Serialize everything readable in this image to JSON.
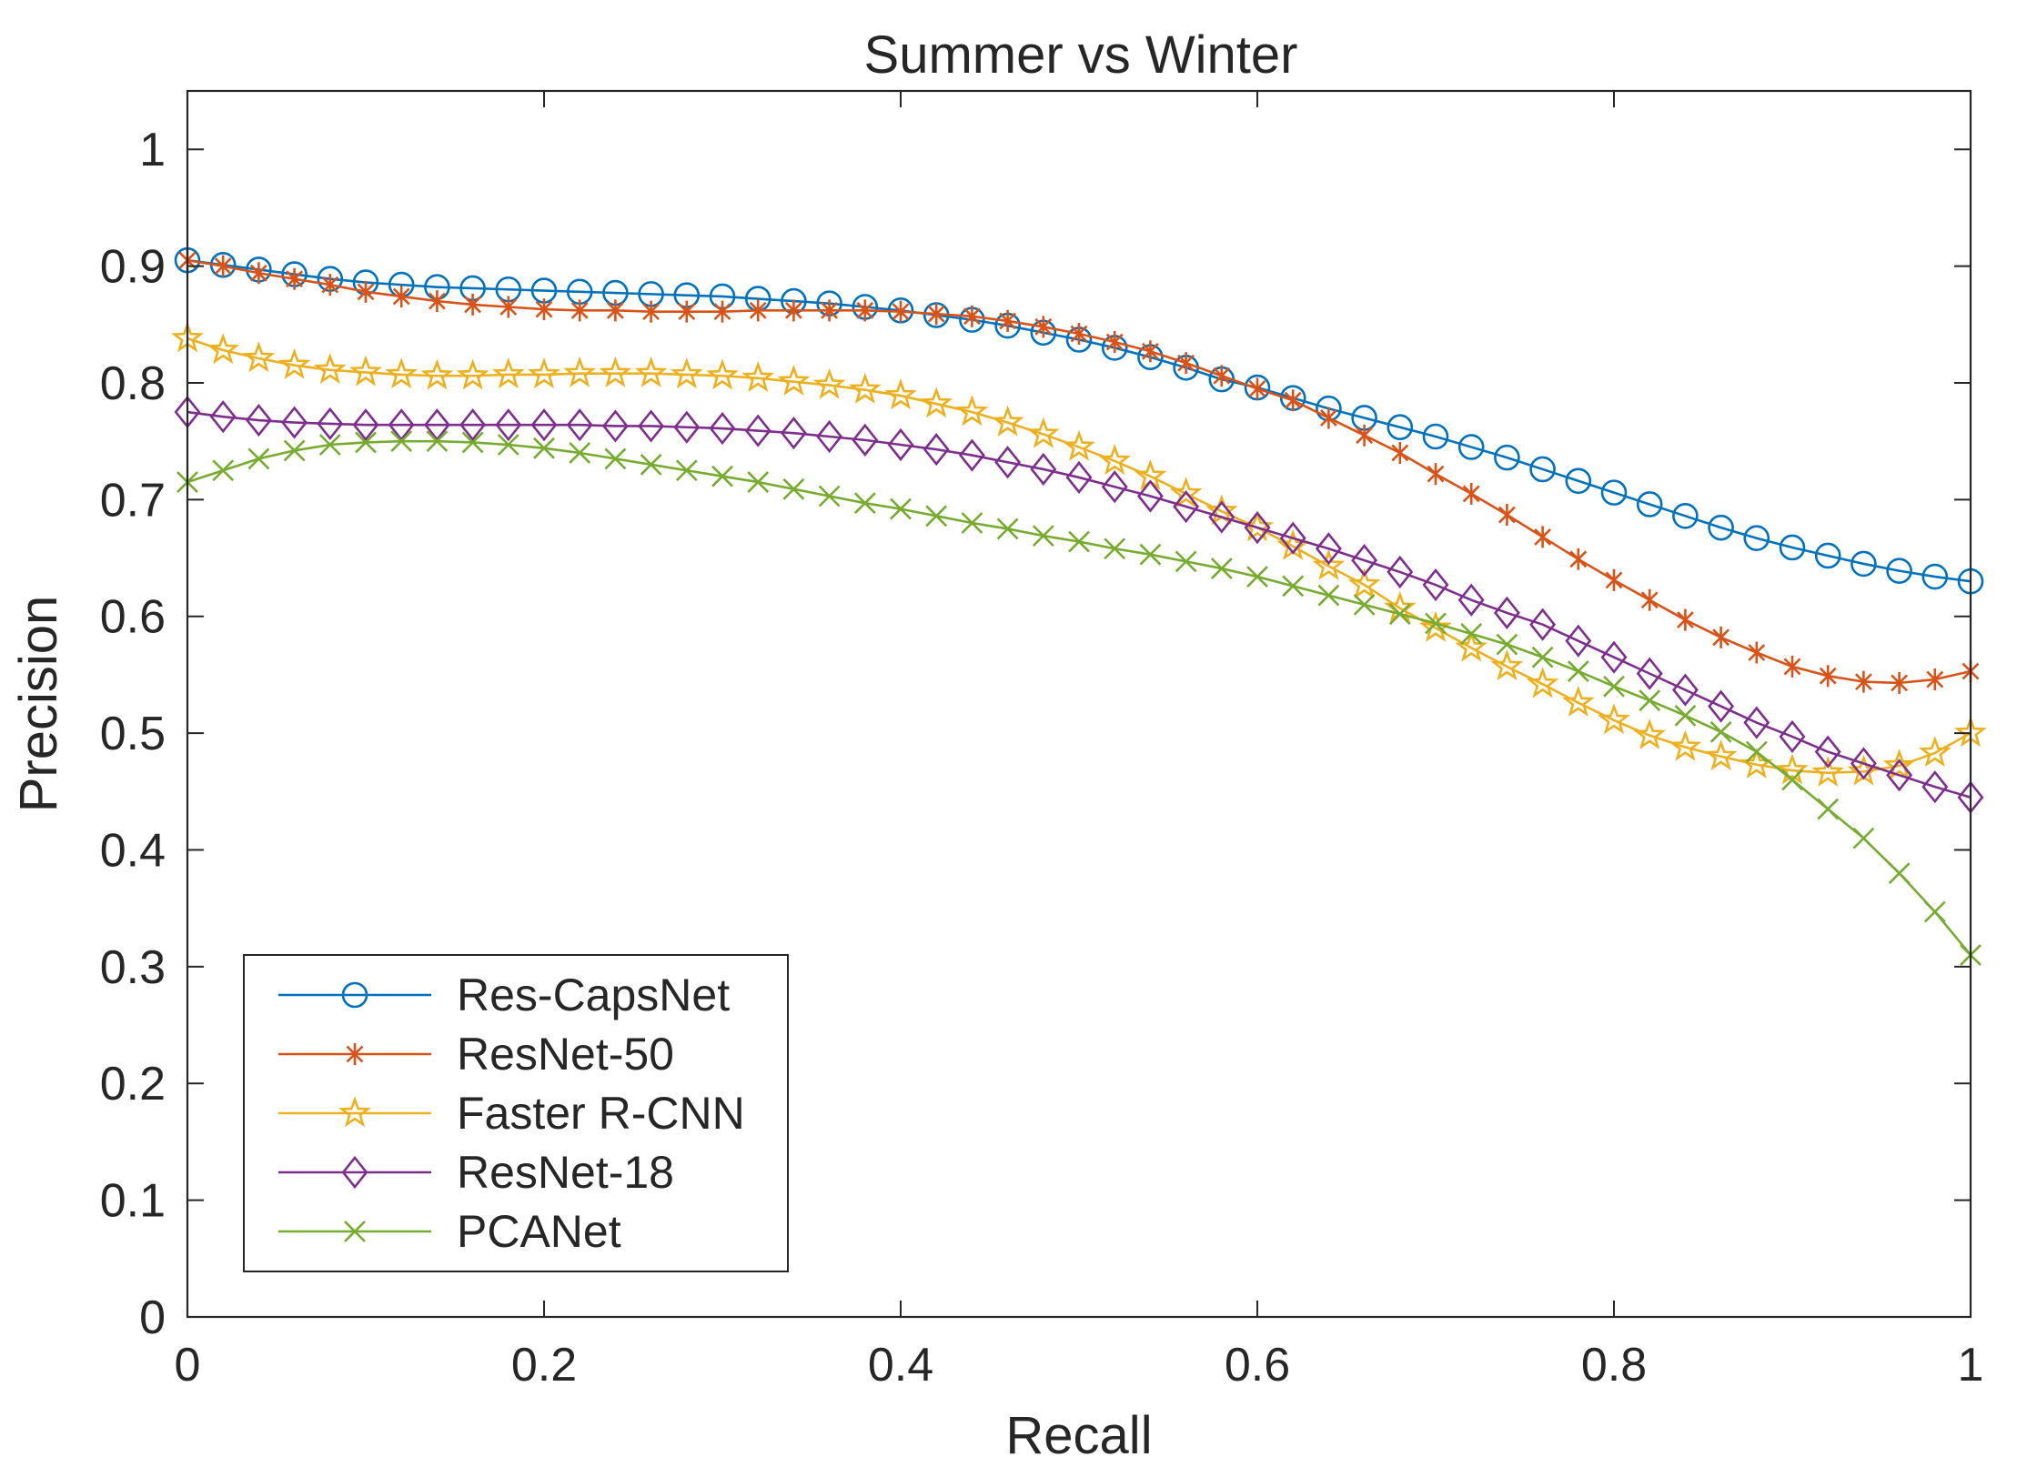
{
  "chart_data": {
    "type": "line",
    "title": "Summer vs Winter",
    "xlabel": "Recall",
    "ylabel": "Precision",
    "xlim": [
      0,
      1
    ],
    "ylim": [
      0,
      1.05
    ],
    "xticks": [
      0,
      0.2,
      0.4,
      0.6,
      0.8,
      1
    ],
    "xtick_labels": [
      "0",
      "0.2",
      "0.4",
      "0.6",
      "0.8",
      "1"
    ],
    "yticks": [
      0,
      0.1,
      0.2,
      0.3,
      0.4,
      0.5,
      0.6,
      0.7,
      0.8,
      0.9,
      1
    ],
    "ytick_labels": [
      "0",
      "0.1",
      "0.2",
      "0.3",
      "0.4",
      "0.5",
      "0.6",
      "0.7",
      "0.8",
      "0.9",
      "1"
    ],
    "grid": false,
    "box": true,
    "legend_position": "bottom-left",
    "x": [
      0,
      0.02,
      0.04,
      0.06,
      0.08,
      0.1,
      0.12,
      0.14,
      0.16,
      0.18,
      0.2,
      0.22,
      0.24,
      0.26,
      0.28,
      0.3,
      0.32,
      0.34,
      0.36,
      0.38,
      0.4,
      0.42,
      0.44,
      0.46,
      0.48,
      0.5,
      0.52,
      0.54,
      0.56,
      0.58,
      0.6,
      0.62,
      0.64,
      0.66,
      0.68,
      0.7,
      0.72,
      0.74,
      0.76,
      0.78,
      0.8,
      0.82,
      0.84,
      0.86,
      0.88,
      0.9,
      0.92,
      0.94,
      0.96,
      0.98,
      1
    ],
    "series": [
      {
        "name": "Res-CapsNet",
        "color": "#0072BD",
        "marker": "circle",
        "values": [
          0.905,
          0.901,
          0.897,
          0.893,
          0.889,
          0.886,
          0.884,
          0.882,
          0.881,
          0.88,
          0.879,
          0.878,
          0.877,
          0.876,
          0.875,
          0.874,
          0.872,
          0.87,
          0.868,
          0.865,
          0.862,
          0.858,
          0.854,
          0.849,
          0.843,
          0.837,
          0.83,
          0.822,
          0.813,
          0.803,
          0.796,
          0.787,
          0.778,
          0.77,
          0.762,
          0.754,
          0.745,
          0.736,
          0.726,
          0.716,
          0.706,
          0.696,
          0.686,
          0.676,
          0.667,
          0.659,
          0.652,
          0.645,
          0.639,
          0.634,
          0.63
        ]
      },
      {
        "name": "ResNet-50",
        "color": "#D95319",
        "marker": "asterisk",
        "values": [
          0.905,
          0.9,
          0.894,
          0.889,
          0.884,
          0.878,
          0.874,
          0.87,
          0.867,
          0.865,
          0.863,
          0.862,
          0.862,
          0.861,
          0.861,
          0.861,
          0.862,
          0.862,
          0.862,
          0.862,
          0.861,
          0.859,
          0.857,
          0.853,
          0.848,
          0.842,
          0.835,
          0.827,
          0.817,
          0.806,
          0.795,
          0.785,
          0.77,
          0.755,
          0.74,
          0.722,
          0.705,
          0.687,
          0.668,
          0.649,
          0.631,
          0.614,
          0.597,
          0.582,
          0.569,
          0.557,
          0.549,
          0.544,
          0.543,
          0.546,
          0.553
        ]
      },
      {
        "name": "Faster R-CNN",
        "color": "#EDB120",
        "marker": "pentagram",
        "values": [
          0.838,
          0.828,
          0.821,
          0.815,
          0.811,
          0.809,
          0.807,
          0.806,
          0.806,
          0.807,
          0.807,
          0.808,
          0.808,
          0.808,
          0.807,
          0.806,
          0.804,
          0.801,
          0.798,
          0.794,
          0.789,
          0.782,
          0.775,
          0.766,
          0.756,
          0.745,
          0.733,
          0.72,
          0.705,
          0.69,
          0.676,
          0.66,
          0.643,
          0.627,
          0.607,
          0.59,
          0.573,
          0.557,
          0.542,
          0.526,
          0.511,
          0.498,
          0.488,
          0.48,
          0.473,
          0.468,
          0.466,
          0.467,
          0.472,
          0.483,
          0.5
        ]
      },
      {
        "name": "ResNet-18",
        "color": "#7E2F8E",
        "marker": "diamond",
        "values": [
          0.775,
          0.771,
          0.768,
          0.766,
          0.765,
          0.764,
          0.764,
          0.764,
          0.764,
          0.764,
          0.764,
          0.764,
          0.763,
          0.763,
          0.762,
          0.761,
          0.759,
          0.757,
          0.754,
          0.751,
          0.747,
          0.743,
          0.738,
          0.732,
          0.726,
          0.719,
          0.711,
          0.703,
          0.694,
          0.685,
          0.676,
          0.667,
          0.658,
          0.648,
          0.638,
          0.627,
          0.614,
          0.603,
          0.593,
          0.579,
          0.565,
          0.551,
          0.537,
          0.523,
          0.509,
          0.497,
          0.484,
          0.474,
          0.464,
          0.454,
          0.445
        ]
      },
      {
        "name": "PCANet",
        "color": "#77AC30",
        "marker": "x",
        "values": [
          0.715,
          0.725,
          0.735,
          0.742,
          0.747,
          0.749,
          0.75,
          0.75,
          0.749,
          0.747,
          0.744,
          0.74,
          0.735,
          0.73,
          0.725,
          0.72,
          0.715,
          0.709,
          0.703,
          0.697,
          0.692,
          0.686,
          0.68,
          0.675,
          0.669,
          0.664,
          0.658,
          0.653,
          0.647,
          0.641,
          0.634,
          0.626,
          0.618,
          0.61,
          0.602,
          0.594,
          0.585,
          0.576,
          0.565,
          0.553,
          0.54,
          0.528,
          0.515,
          0.501,
          0.484,
          0.46,
          0.435,
          0.41,
          0.38,
          0.347,
          0.31
        ]
      }
    ]
  }
}
